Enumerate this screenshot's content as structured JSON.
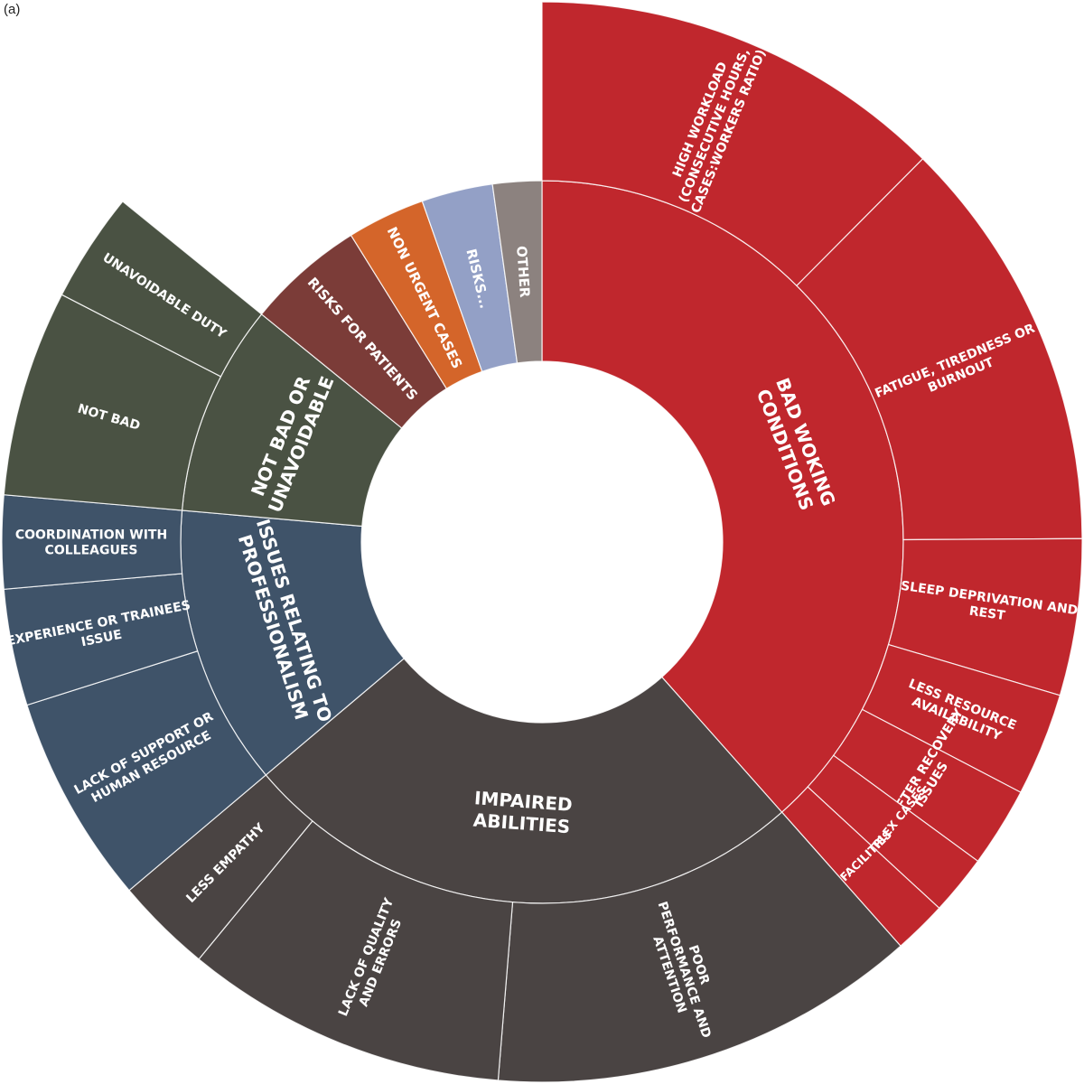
{
  "panel_label": "(a)",
  "chart_data": {
    "type": "sunburst",
    "inner_ring_note": "inner ring = themes, outer ring = sub-themes; values are approximate angular shares (sum 100)",
    "themes": [
      {
        "name": "BAD WOKING CONDITIONS",
        "label_lines": [
          "BAD WOKING",
          "CONDITIONS"
        ],
        "color": "#c0272d",
        "children": [
          {
            "name": "HIGH WORKLOAD (CONSECUTIVE HOURS, CASES:WORKERS RATIO)",
            "label_lines": [
              "HIGH WORKLOAD",
              "(CONSECUTIVE HOURS,",
              "CASES:WORKERS RATIO)"
            ],
            "value": 12.5
          },
          {
            "name": "FATIGUE, TIREDNESS OR BURNOUT",
            "label_lines": [
              "FATIGUE, TIREDNESS OR",
              "BURNOUT"
            ],
            "value": 12.5
          },
          {
            "name": "SLEEP DEPRIVATION AND REST",
            "label_lines": [
              "SLEEP DEPRIVATION AND",
              "REST"
            ],
            "value": 4.7
          },
          {
            "name": "LESS RESOURCE AVAILABILITY",
            "label_lines": [
              "LESS RESOURCE",
              "AVAILABILITY"
            ],
            "value": 3.1
          },
          {
            "name": "DAY AFTER RECOVERY ISSUES",
            "label_lines": [
              "DAY AFTER RECOVERY",
              "ISSUES"
            ],
            "value": 2.4
          },
          {
            "name": "COMPLEX CASES",
            "label_lines": [
              "COMPLEX CASES"
            ],
            "value": 1.8
          },
          {
            "name": "NO FACILITIES",
            "label_lines": [
              "NO FACILITIES"
            ],
            "value": 1.6
          }
        ]
      },
      {
        "name": "IMPAIRED ABILITIES",
        "label_lines": [
          "IMPAIRED",
          "ABILITIES"
        ],
        "color": "#4a4443",
        "children": [
          {
            "name": "POOR PERFORMANCE AND ATTENTION",
            "label_lines": [
              "POOR",
              "PERFORMANCE AND",
              "ATTENTION"
            ],
            "value": 12.9
          },
          {
            "name": "LACK OF QUALITY AND ERRORS",
            "label_lines": [
              "LACK OF QUALITY",
              "AND ERRORS"
            ],
            "value": 9.7
          },
          {
            "name": "LESS EMPATHY",
            "label_lines": [
              "LESS EMPATHY"
            ],
            "value": 2.9
          }
        ]
      },
      {
        "name": "ISSUES RELATING TO PROFESSIONALISM",
        "label_lines": [
          "ISSUES RELATING TO",
          "PROFESSIONALISM"
        ],
        "color": "#3f5369",
        "children": [
          {
            "name": "LACK OF SUPPORT OR HUMAN RESOURCE",
            "label_lines": [
              "LACK OF SUPPORT OR",
              "HUMAN RESOURCE"
            ],
            "value": 6.3
          },
          {
            "name": "EXPERIENCE OR TRAINEES ISSUE",
            "label_lines": [
              "EXPERIENCE OR TRAINEES",
              "ISSUE"
            ],
            "value": 3.5
          },
          {
            "name": "COORDINATION WITH COLLEAGUES",
            "label_lines": [
              "COORDINATION WITH",
              "COLLEAGUES"
            ],
            "value": 2.8
          }
        ]
      },
      {
        "name": "NOT BAD OR UNAVOIDABLE",
        "label_lines": [
          "NOT BAD OR",
          "UNAVOIDABLE"
        ],
        "color": "#4a5243",
        "children": [
          {
            "name": "NOT BAD",
            "label_lines": [
              "NOT BAD"
            ],
            "value": 6.2
          },
          {
            "name": "UNAVOIDABLE DUTY",
            "label_lines": [
              "UNAVOIDABLE DUTY"
            ],
            "value": 3.3
          }
        ]
      },
      {
        "name": "RISKS FOR PATIENTS",
        "label_lines": [
          "RISKS FOR PATIENTS"
        ],
        "color": "#7b3c38",
        "value": 5.3
      },
      {
        "name": "NON URGENT CASES",
        "label_lines": [
          "NON URGENT CASES"
        ],
        "color": "#d4652a",
        "value": 3.5
      },
      {
        "name": "RISKS...",
        "label_lines": [
          "RISKS..."
        ],
        "color": "#93a0c6",
        "value": 3.2
      },
      {
        "name": "OTHER",
        "label_lines": [
          "OTHER"
        ],
        "color": "#8c827f",
        "value": 2.2
      }
    ]
  }
}
